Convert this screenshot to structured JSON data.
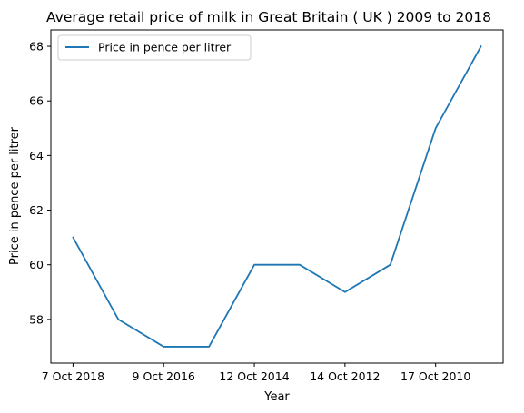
{
  "chart_data": {
    "type": "line",
    "title": "Average retail price of milk in Great Britain ( UK ) 2009 to 2018",
    "xlabel": "Year",
    "ylabel": "Price in pence per litrer",
    "x_ticks": [
      "7 Oct 2018",
      "9 Oct 2016",
      "12 Oct 2014",
      "14 Oct 2012",
      "17 Oct 2010"
    ],
    "y_ticks": [
      58,
      60,
      62,
      64,
      66,
      68
    ],
    "ylim": [
      56.4,
      68.6
    ],
    "grid": false,
    "legend_position": "top-left",
    "color": "#1f77b4",
    "series": [
      {
        "name": "Price in pence per litrer",
        "x": [
          "7 Oct 2018",
          "",
          "9 Oct 2016",
          "",
          "12 Oct 2014",
          "",
          "14 Oct 2012",
          "",
          "17 Oct 2010",
          ""
        ],
        "values": [
          61,
          58,
          57,
          57,
          60,
          60,
          59,
          60,
          65,
          68
        ]
      }
    ]
  }
}
